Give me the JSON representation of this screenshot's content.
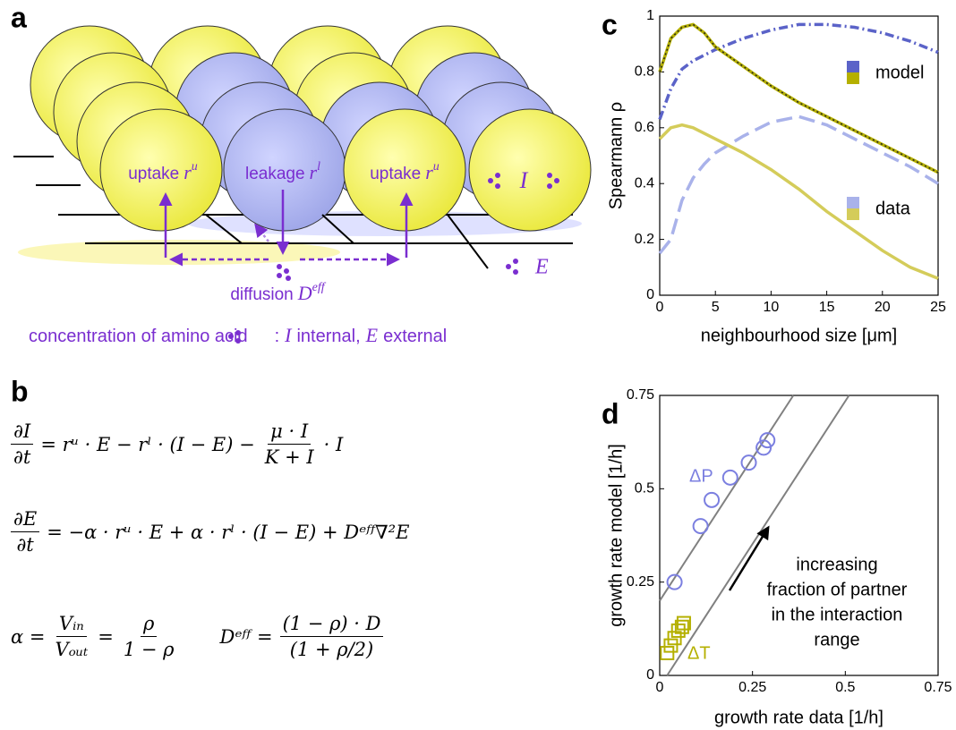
{
  "panel_a": {
    "panel_label": "a",
    "labels": [
      {
        "text": "uptake",
        "symbol": "r",
        "sup": "u"
      },
      {
        "text": "leakage",
        "symbol": "r",
        "sup": "l"
      },
      {
        "text": "uptake",
        "symbol": "r",
        "sup": "u"
      },
      {
        "text": "diffusion",
        "symbol": "D",
        "sup": "eff"
      }
    ],
    "internal_symbol": "I",
    "external_symbol": "E",
    "caption": [
      "concentration of amino acid",
      ":",
      "I",
      "internal,",
      "E",
      "external"
    ]
  },
  "panel_b": {
    "panel_label": "b",
    "equations": [
      [
        {
          "num": "∂I",
          "den": "∂t"
        },
        "= rᵘ · E − rˡ · (I − E) −",
        {
          "num": "μ · I",
          "den": "K + I"
        },
        "· I"
      ],
      [
        {
          "num": "∂E",
          "den": "∂t"
        },
        "= −α · rᵘ · E + α · rˡ · (I − E) + Dᵉᶠᶠ∇²E"
      ],
      [
        "α =",
        {
          "num": "Vᵢₙ",
          "den": "Vₒᵤₜ"
        },
        "=",
        {
          "num": "ρ",
          "den": "1 − ρ"
        },
        "Dᵉᶠᶠ =",
        {
          "num": "(1 − ρ) · D",
          "den": "(1 + ρ/2)"
        }
      ]
    ]
  },
  "chart_data": [
    {
      "type": "line",
      "panel_label": "c",
      "xlabel": "neighbourhood size [μm]",
      "ylabel": "Spearmann ρ",
      "x": [
        0,
        1,
        2,
        3,
        4,
        5,
        7.5,
        10,
        12.5,
        15,
        17.5,
        20,
        22.5,
        25
      ],
      "series": [
        {
          "color": "#5b63c8",
          "line_style": "dashdot",
          "values": [
            0.63,
            0.74,
            0.81,
            0.84,
            0.86,
            0.88,
            0.92,
            0.95,
            0.97,
            0.97,
            0.96,
            0.94,
            0.91,
            0.87
          ]
        },
        {
          "color": "#b5b000",
          "line_style": "dotted-overlay",
          "values": [
            0.8,
            0.92,
            0.96,
            0.97,
            0.94,
            0.89,
            0.82,
            0.75,
            0.69,
            0.64,
            0.59,
            0.54,
            0.49,
            0.44
          ]
        },
        {
          "color": "#a9b2ea",
          "line_style": "dashed",
          "values": [
            0.15,
            0.2,
            0.34,
            0.42,
            0.47,
            0.51,
            0.57,
            0.62,
            0.64,
            0.61,
            0.56,
            0.51,
            0.46,
            0.4
          ]
        },
        {
          "color": "#d4cc5a",
          "line_style": "solid",
          "values": [
            0.56,
            0.6,
            0.61,
            0.6,
            0.58,
            0.56,
            0.51,
            0.45,
            0.38,
            0.3,
            0.23,
            0.16,
            0.1,
            0.06
          ]
        }
      ],
      "legend": [
        {
          "label": "model",
          "series": [
            0,
            1
          ]
        },
        {
          "label": "data",
          "series": [
            2,
            3
          ]
        }
      ],
      "xlim": [
        0,
        25
      ],
      "xticks": [
        0,
        5,
        10,
        15,
        20,
        25
      ],
      "ylim": [
        0,
        1
      ],
      "yticks": [
        0,
        0.2,
        0.4,
        0.6,
        0.8,
        1
      ]
    },
    {
      "type": "scatter",
      "panel_label": "d",
      "xlabel": "growth rate data  [1/h]",
      "ylabel": "growth rate model [1/h]",
      "series": [
        {
          "name": "ΔP",
          "color": "#7b7fe0",
          "marker": "circle",
          "x": [
            0.04,
            0.11,
            0.14,
            0.19,
            0.24,
            0.28,
            0.29
          ],
          "values": [
            0.25,
            0.4,
            0.47,
            0.53,
            0.57,
            0.61,
            0.63
          ]
        },
        {
          "name": "ΔT",
          "color": "#b5b000",
          "marker": "square",
          "x": [
            0.02,
            0.03,
            0.04,
            0.05,
            0.06,
            0.065
          ],
          "values": [
            0.06,
            0.08,
            0.1,
            0.12,
            0.13,
            0.14
          ]
        }
      ],
      "lines": [
        {
          "color": "#808080",
          "x": [
            0,
            0.36
          ],
          "y": [
            0.2,
            0.75
          ]
        },
        {
          "color": "#808080",
          "x": [
            0.02,
            0.51
          ],
          "y": [
            0,
            0.75
          ]
        }
      ],
      "annotation": [
        "increasing",
        "fraction of partner",
        "in the interaction",
        "range"
      ],
      "xlim": [
        0,
        0.75
      ],
      "xticks": [
        0,
        0.25,
        0.5,
        0.75
      ],
      "ylim": [
        0,
        0.75
      ],
      "yticks": [
        0,
        0.25,
        0.5,
        0.75
      ]
    }
  ]
}
